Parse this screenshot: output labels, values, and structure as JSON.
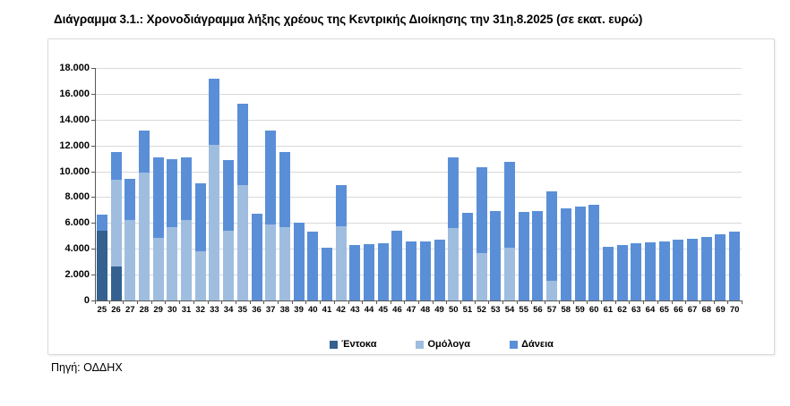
{
  "title": "Διάγραμμα 3.1.: Χρονοδιάγραμμα λήξης χρέους της Κεντρικής Διοίκησης την 31η.8.2025 (σε εκατ. ευρώ)",
  "source": "Πηγή: ΟΔΔΗΧ",
  "colors": {
    "entoka": "#34618f",
    "omologa": "#9fbddf",
    "daneia": "#5a8fd8",
    "grid": "#d9d9d9",
    "axis": "#595959",
    "frame_border": "#d9d9d9",
    "text": "#000000"
  },
  "chart_data": {
    "type": "bar",
    "stacked": true,
    "title": "Διάγραμμα 3.1.: Χρονοδιάγραμμα λήξης χρέους της Κεντρικής Διοίκησης την 31η.8.2025 (σε εκατ. ευρώ)",
    "xlabel": "",
    "ylabel": "",
    "ylim": [
      0,
      18000
    ],
    "ytick_step": 2000,
    "ytick_labels": [
      "0",
      "2.000",
      "4.000",
      "6.000",
      "8.000",
      "10.000",
      "12.000",
      "14.000",
      "16.000",
      "18.000"
    ],
    "grid": true,
    "legend_position": "bottom",
    "categories": [
      "25",
      "26",
      "27",
      "28",
      "29",
      "30",
      "31",
      "32",
      "33",
      "34",
      "35",
      "36",
      "37",
      "38",
      "39",
      "40",
      "41",
      "42",
      "43",
      "44",
      "45",
      "46",
      "47",
      "48",
      "49",
      "50",
      "51",
      "52",
      "53",
      "54",
      "55",
      "56",
      "57",
      "58",
      "59",
      "60",
      "61",
      "62",
      "63",
      "64",
      "65",
      "66",
      "67",
      "68",
      "69",
      "70"
    ],
    "series": [
      {
        "name": "Έντοκα",
        "key": "entoka",
        "values": [
          5400,
          2650,
          0,
          0,
          0,
          0,
          0,
          0,
          0,
          0,
          0,
          0,
          0,
          0,
          0,
          0,
          0,
          0,
          0,
          0,
          0,
          0,
          0,
          0,
          0,
          0,
          0,
          0,
          0,
          0,
          0,
          0,
          0,
          0,
          0,
          0,
          0,
          0,
          0,
          0,
          0,
          0,
          0,
          0,
          0,
          0
        ]
      },
      {
        "name": "Ομόλογα",
        "key": "omologa",
        "values": [
          0,
          6700,
          6200,
          9900,
          4850,
          5700,
          6200,
          3800,
          12050,
          5400,
          8950,
          0,
          5900,
          5650,
          0,
          0,
          0,
          5750,
          0,
          0,
          0,
          0,
          0,
          0,
          0,
          5600,
          0,
          3700,
          0,
          4100,
          0,
          0,
          1550,
          0,
          0,
          0,
          0,
          0,
          0,
          0,
          0,
          0,
          0,
          0,
          0,
          0
        ]
      },
      {
        "name": "Δάνεια",
        "key": "daneia",
        "values": [
          1250,
          2150,
          3200,
          3250,
          6250,
          5250,
          4850,
          5250,
          5150,
          5500,
          6300,
          6700,
          7250,
          5850,
          6000,
          5350,
          4100,
          3150,
          4300,
          4350,
          4400,
          5400,
          4550,
          4600,
          4700,
          5450,
          6800,
          6650,
          6900,
          6650,
          6850,
          6900,
          6900,
          7150,
          7300,
          7400,
          4150,
          4300,
          4400,
          4500,
          4600,
          4700,
          4800,
          4950,
          5100,
          5350
        ]
      }
    ]
  }
}
